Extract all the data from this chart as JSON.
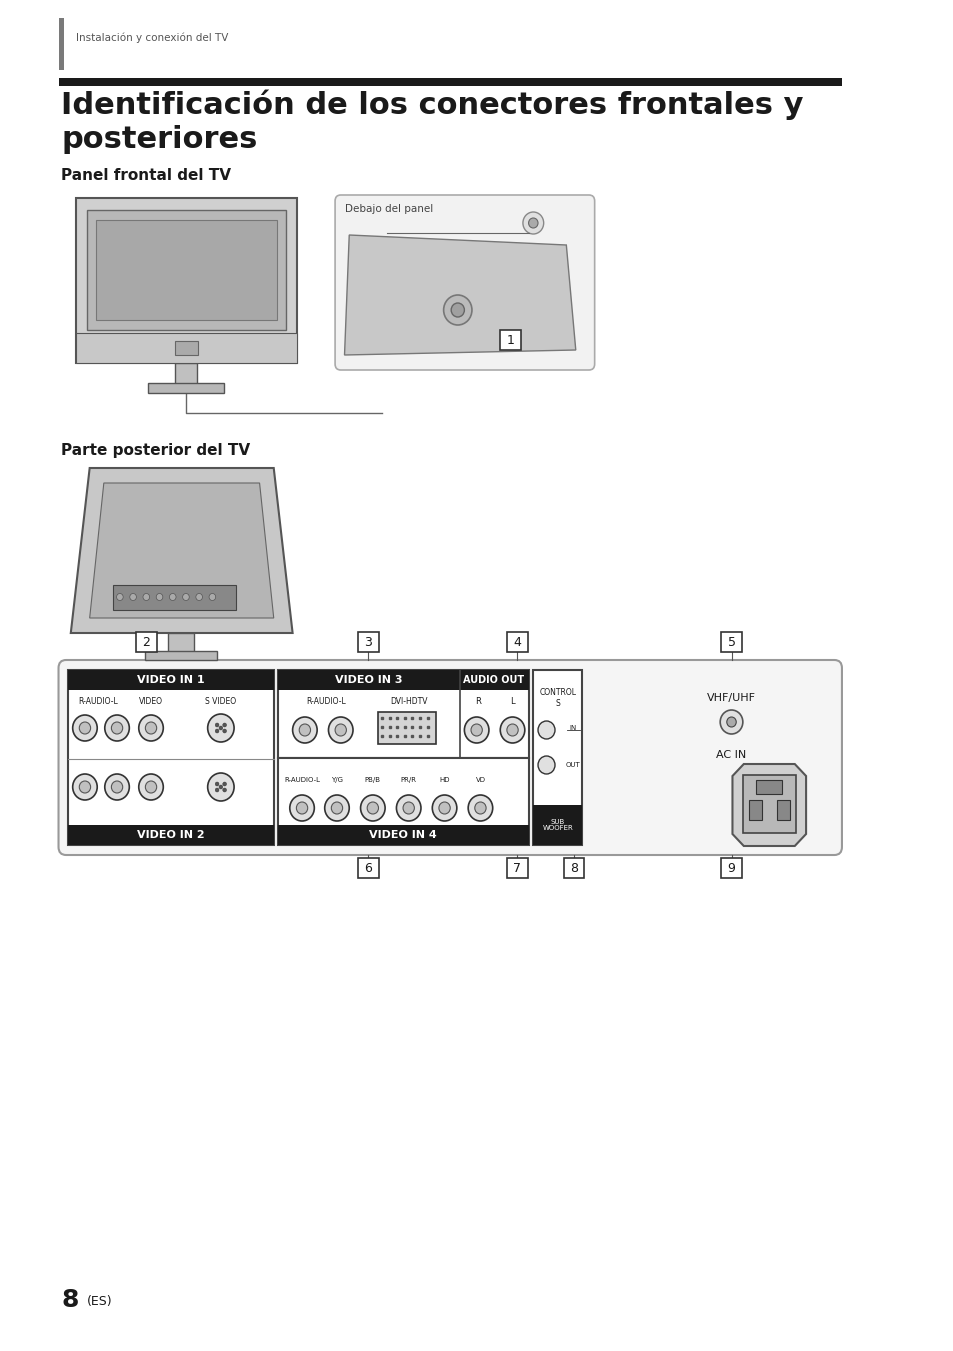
{
  "bg_color": "#ffffff",
  "header_bar_color": "#7a7a7a",
  "header_text": "Instalación y conexión del TV",
  "title_bar_color": "#1a1a1a",
  "title_line1": "Identificación de los conectores frontales y",
  "title_line2": "posteriores",
  "section1_label": "Panel frontal del TV",
  "section2_label": "Parte posterior del TV",
  "panel_label": "Debajo del panel",
  "connector_sections": {
    "video_in1": "VIDEO IN 1",
    "video_in2": "VIDEO IN 2",
    "video_in3": "VIDEO IN 3",
    "video_in4": "VIDEO IN 4",
    "audio_out": "AUDIO OUT"
  },
  "page_num": "8",
  "page_suffix": "(ES)"
}
